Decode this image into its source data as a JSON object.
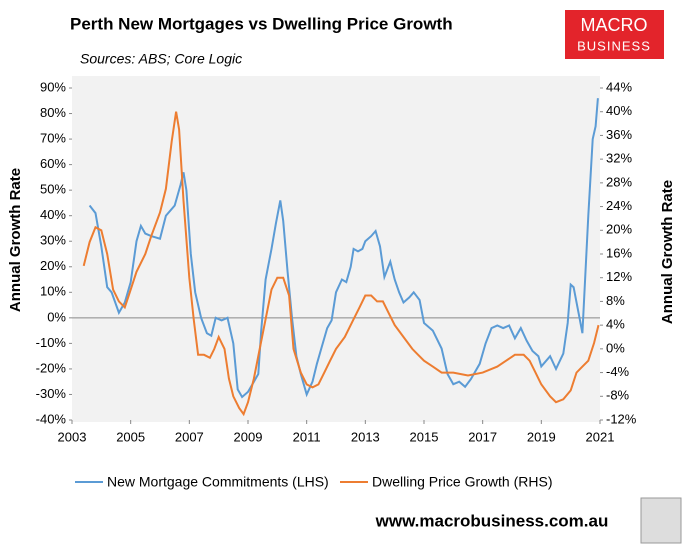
{
  "chart_data": {
    "type": "line",
    "title": "Perth New Mortgages vs Dwelling Price Growth",
    "subtitle": "Sources: ABS; Core Logic",
    "ylabel": "Annual Growth Rate",
    "y2label": "Annual Growth Rate",
    "xlim": [
      2003,
      2021
    ],
    "xticks": [
      2003,
      2005,
      2007,
      2009,
      2011,
      2013,
      2015,
      2017,
      2019,
      2021
    ],
    "ylim": [
      -40,
      90
    ],
    "yticks": [
      {
        "value": 90,
        "label": "90%"
      },
      {
        "value": 80,
        "label": "80%"
      },
      {
        "value": 70,
        "label": "70%"
      },
      {
        "value": 60,
        "label": "60%"
      },
      {
        "value": 50,
        "label": "50%"
      },
      {
        "value": 40,
        "label": "40%"
      },
      {
        "value": 30,
        "label": "30%"
      },
      {
        "value": 20,
        "label": "20%"
      },
      {
        "value": 10,
        "label": "10%"
      },
      {
        "value": 0,
        "label": "0%"
      },
      {
        "value": -10,
        "label": "-10%"
      },
      {
        "value": -20,
        "label": "-20%"
      },
      {
        "value": -30,
        "label": "-30%"
      },
      {
        "value": -40,
        "label": "-40%"
      }
    ],
    "y2lim": [
      -12,
      44
    ],
    "y2ticks": [
      {
        "value": 44,
        "label": "44%"
      },
      {
        "value": 40,
        "label": "40%"
      },
      {
        "value": 36,
        "label": "36%"
      },
      {
        "value": 32,
        "label": "32%"
      },
      {
        "value": 28,
        "label": "28%"
      },
      {
        "value": 24,
        "label": "24%"
      },
      {
        "value": 20,
        "label": "20%"
      },
      {
        "value": 16,
        "label": "16%"
      },
      {
        "value": 12,
        "label": "12%"
      },
      {
        "value": 8,
        "label": "8%"
      },
      {
        "value": 4,
        "label": "4%"
      },
      {
        "value": 0,
        "label": "0%"
      },
      {
        "value": -4,
        "label": "-4%"
      },
      {
        "value": -8,
        "label": "-8%"
      },
      {
        "value": -12,
        "label": "-12%"
      }
    ],
    "series": [
      {
        "name": "New Mortgage Commitments (LHS)",
        "color": "#5b9bd5",
        "axis": "y",
        "x": [
          2003.6,
          2003.8,
          2004.0,
          2004.2,
          2004.35,
          2004.6,
          2004.8,
          2005.0,
          2005.2,
          2005.35,
          2005.5,
          2005.7,
          2006.0,
          2006.2,
          2006.5,
          2006.7,
          2006.8,
          2006.9,
          2007.05,
          2007.2,
          2007.4,
          2007.6,
          2007.75,
          2007.9,
          2008.1,
          2008.3,
          2008.5,
          2008.65,
          2008.8,
          2009.0,
          2009.2,
          2009.35,
          2009.45,
          2009.6,
          2009.8,
          2009.95,
          2010.1,
          2010.2,
          2010.35,
          2010.5,
          2010.65,
          2010.8,
          2011.0,
          2011.2,
          2011.35,
          2011.5,
          2011.7,
          2011.85,
          2012.0,
          2012.2,
          2012.35,
          2012.5,
          2012.6,
          2012.75,
          2012.9,
          2013.0,
          2013.2,
          2013.35,
          2013.5,
          2013.65,
          2013.85,
          2014.0,
          2014.15,
          2014.3,
          2014.5,
          2014.65,
          2014.85,
          2015.0,
          2015.3,
          2015.6,
          2015.8,
          2016.0,
          2016.2,
          2016.4,
          2016.6,
          2016.9,
          2017.1,
          2017.3,
          2017.5,
          2017.7,
          2017.9,
          2018.1,
          2018.3,
          2018.5,
          2018.7,
          2018.9,
          2019.0,
          2019.3,
          2019.5,
          2019.75,
          2019.9,
          2020.0,
          2020.1,
          2020.3,
          2020.4,
          2020.6,
          2020.75,
          2020.85,
          2020.93
        ],
        "values": [
          44,
          41,
          28,
          12,
          10,
          2,
          6,
          14,
          30,
          36,
          33,
          32,
          31,
          40,
          44,
          52,
          57,
          50,
          25,
          10,
          0,
          -6,
          -7,
          0,
          -1,
          0,
          -10,
          -28,
          -31,
          -29,
          -25,
          -22,
          -5,
          15,
          27,
          37,
          46,
          38,
          18,
          0,
          -15,
          -22,
          -30,
          -25,
          -18,
          -12,
          -4,
          -1,
          10,
          15,
          14,
          20,
          27,
          26,
          27,
          30,
          32,
          34,
          28,
          16,
          22,
          15,
          10,
          6,
          8,
          10,
          7,
          -2,
          -5,
          -12,
          -22,
          -26,
          -25,
          -27,
          -24,
          -18,
          -10,
          -4,
          -3,
          -4,
          -3,
          -8,
          -4,
          -9,
          -13,
          -15,
          -19,
          -15,
          -20,
          -14,
          -2,
          13,
          12,
          0,
          -6,
          40,
          70,
          75,
          86
        ]
      },
      {
        "name": "Dwelling Price Growth (RHS)",
        "color": "#ed7d31",
        "axis": "y2",
        "x": [
          2003.4,
          2003.6,
          2003.8,
          2004.0,
          2004.2,
          2004.4,
          2004.6,
          2004.8,
          2005.0,
          2005.2,
          2005.5,
          2005.7,
          2006.0,
          2006.2,
          2006.4,
          2006.55,
          2006.65,
          2006.8,
          2007.0,
          2007.15,
          2007.3,
          2007.5,
          2007.7,
          2007.85,
          2008.0,
          2008.2,
          2008.35,
          2008.5,
          2008.7,
          2008.85,
          2009.0,
          2009.2,
          2009.4,
          2009.6,
          2009.8,
          2010.0,
          2010.2,
          2010.4,
          2010.55,
          2010.8,
          2011.0,
          2011.2,
          2011.4,
          2011.6,
          2011.8,
          2012.0,
          2012.3,
          2012.6,
          2012.8,
          2013.0,
          2013.2,
          2013.4,
          2013.6,
          2013.8,
          2014.0,
          2014.3,
          2014.6,
          2014.8,
          2015.0,
          2015.3,
          2015.6,
          2016.0,
          2016.5,
          2017.0,
          2017.5,
          2017.8,
          2018.1,
          2018.4,
          2018.6,
          2018.8,
          2019.0,
          2019.3,
          2019.5,
          2019.75,
          2020.0,
          2020.2,
          2020.4,
          2020.6,
          2020.8,
          2020.95
        ],
        "values": [
          14,
          18,
          20.5,
          20,
          16,
          10,
          8,
          7,
          10,
          13,
          16,
          19,
          23,
          27,
          35,
          40,
          37,
          25,
          12,
          5,
          -1,
          -1,
          -1.5,
          0,
          2,
          0,
          -5,
          -8,
          -10,
          -11,
          -9,
          -5,
          0,
          5,
          10,
          12,
          12,
          9,
          0,
          -4,
          -6,
          -6.5,
          -6,
          -4,
          -2,
          0,
          2,
          5,
          7,
          9,
          9,
          8,
          8,
          6,
          4,
          2,
          0,
          -1,
          -2,
          -3,
          -4,
          -4,
          -4.5,
          -4,
          -3,
          -2,
          -1,
          -1,
          -2,
          -4,
          -6,
          -8,
          -9,
          -8.5,
          -7,
          -4,
          -3,
          -2,
          1,
          4
        ]
      }
    ]
  },
  "branding": {
    "logo_top": "MACRO",
    "logo_bottom": "BUSINESS",
    "website": "www.macrobusiness.com.au"
  }
}
